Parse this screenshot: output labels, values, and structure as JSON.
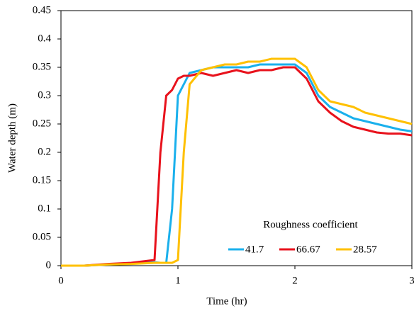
{
  "chart_data": {
    "type": "line",
    "x_label": "Time (hr)",
    "y_label": "Water depth (m)",
    "legend_title": "Roughness coefficient",
    "x": [
      0,
      0.2,
      0.4,
      0.6,
      0.8,
      0.85,
      0.9,
      0.95,
      1.0,
      1.05,
      1.1,
      1.2,
      1.3,
      1.4,
      1.5,
      1.6,
      1.7,
      1.8,
      1.9,
      2.0,
      2.1,
      2.2,
      2.3,
      2.4,
      2.5,
      2.6,
      2.7,
      2.8,
      2.9,
      3.0
    ],
    "series": [
      {
        "name": "41.7",
        "color": "#1ab0ec",
        "values": [
          0,
          0,
          0.002,
          0.004,
          0.006,
          0.005,
          0.005,
          0.1,
          0.3,
          0.32,
          0.34,
          0.345,
          0.35,
          0.35,
          0.35,
          0.35,
          0.355,
          0.355,
          0.355,
          0.355,
          0.34,
          0.3,
          0.28,
          0.27,
          0.26,
          0.255,
          0.25,
          0.245,
          0.24,
          0.237
        ]
      },
      {
        "name": "66.67",
        "color": "#e8121c",
        "values": [
          0,
          0,
          0.003,
          0.005,
          0.01,
          0.2,
          0.3,
          0.31,
          0.33,
          0.335,
          0.335,
          0.34,
          0.335,
          0.34,
          0.345,
          0.34,
          0.345,
          0.345,
          0.35,
          0.35,
          0.33,
          0.29,
          0.27,
          0.255,
          0.245,
          0.24,
          0.235,
          0.233,
          0.233,
          0.23
        ]
      },
      {
        "name": "28.57",
        "color": "#ffc000",
        "values": [
          0,
          0,
          0.002,
          0.003,
          0.005,
          0.005,
          0.005,
          0.005,
          0.01,
          0.2,
          0.32,
          0.345,
          0.35,
          0.355,
          0.355,
          0.36,
          0.36,
          0.365,
          0.365,
          0.365,
          0.35,
          0.31,
          0.29,
          0.285,
          0.28,
          0.27,
          0.265,
          0.26,
          0.255,
          0.25
        ]
      }
    ],
    "xlim": [
      0,
      3
    ],
    "xticks": [
      0,
      1,
      2,
      3
    ],
    "ylim": [
      0,
      0.45
    ],
    "yticks": [
      0,
      0.05,
      0.1,
      0.15,
      0.2,
      0.25,
      0.3,
      0.35,
      0.4,
      0.45
    ]
  }
}
